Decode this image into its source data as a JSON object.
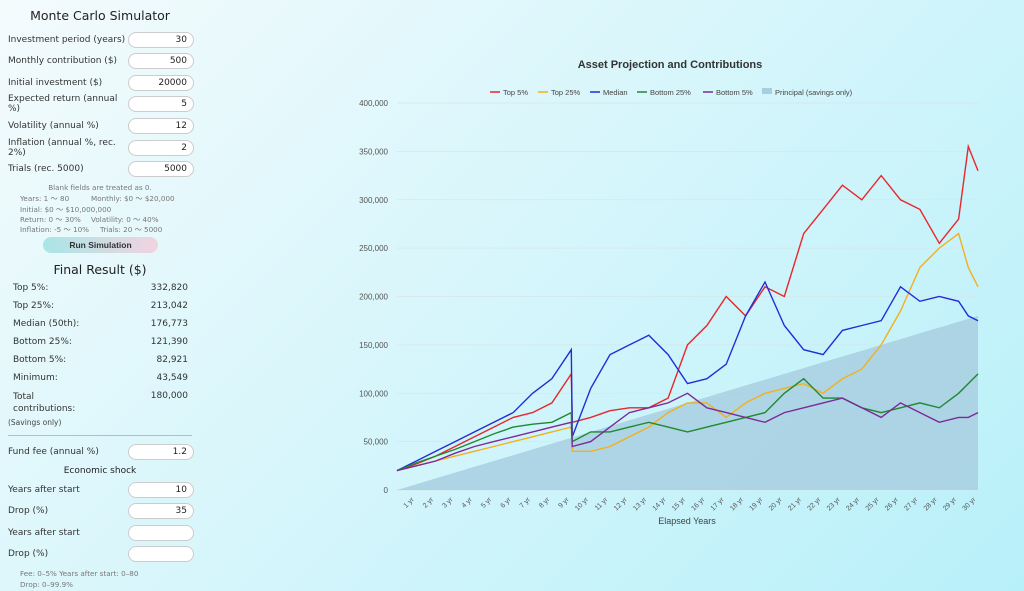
{
  "app_title": "Monte Carlo Simulator",
  "inputs": [
    {
      "label": "Investment period (years)",
      "value": "30"
    },
    {
      "label": "Monthly contribution ($)",
      "value": "500"
    },
    {
      "label": "Initial investment ($)",
      "value": "20000"
    },
    {
      "label": "Expected return (annual %)",
      "value": "5"
    },
    {
      "label": "Volatility (annual %)",
      "value": "12"
    },
    {
      "label": "Inflation (annual %, rec. 2%)",
      "value": "2"
    },
    {
      "label": "Trials (rec. 5000)",
      "value": "5000"
    }
  ],
  "hints": {
    "blank": "Blank fields are treated as 0.",
    "years": "Years: 1 〜 80",
    "monthly": "Monthly: $0 〜 $20,000",
    "initial": "Initial: $0 〜 $10,000,000",
    "return": "Return: 0 〜 30%",
    "volatility": "Volatility: 0 〜 40%",
    "inflation": "Inflation: -5 〜 10%",
    "trials": "Trials: 20 〜 5000"
  },
  "run_button": "Run Simulation",
  "results_title": "Final Result ($)",
  "results": [
    {
      "label": "Top 5%:",
      "value": "332,820"
    },
    {
      "label": "Top 25%:",
      "value": "213,042"
    },
    {
      "label": "Median (50th):",
      "value": "176,773"
    },
    {
      "label": "Bottom 25%:",
      "value": "121,390"
    },
    {
      "label": "Bottom 5%:",
      "value": "82,921"
    },
    {
      "label": "Minimum:",
      "value": "43,549"
    }
  ],
  "total_contrib": {
    "label1": "Total",
    "label2": "contributions:",
    "value": "180,000",
    "note": "(Savings only)"
  },
  "fee": {
    "label": "Fund fee (annual %)",
    "value": "1.2"
  },
  "shock": {
    "title": "Economic shock",
    "rows": [
      {
        "label": "Years after start",
        "value": "10"
      },
      {
        "label": "Drop (%)",
        "value": "35"
      },
      {
        "label": "Years after start",
        "value": ""
      },
      {
        "label": "Drop (%)",
        "value": ""
      }
    ]
  },
  "shock_hints": {
    "line1": "Fee: 0–5%   Years after start: 0–80",
    "line2": "Drop: 0–99.9%"
  },
  "chart_data": {
    "type": "line",
    "title": "Asset Projection and Contributions",
    "xlabel": "Elapsed Years",
    "ylabel": "",
    "ylim": [
      0,
      400000
    ],
    "yticks": [
      0,
      50000,
      100000,
      150000,
      200000,
      250000,
      300000,
      350000,
      400000
    ],
    "ytick_labels": [
      "0",
      "50,000",
      "100,000",
      "150,000",
      "200,000",
      "250,000",
      "300,000",
      "350,000",
      "400,000"
    ],
    "xlim": [
      0,
      30
    ],
    "xtick_labels": [
      "1 yr",
      "2 yr",
      "3 yr",
      "4 yr",
      "5 yr",
      "6 yr",
      "7 yr",
      "8 yr",
      "9 yr",
      "10 yr",
      "11 yr",
      "12 yr",
      "13 yr",
      "14 yr",
      "15 yr",
      "16 yr",
      "17 yr",
      "18 yr",
      "19 yr",
      "20 yr",
      "21 yr",
      "22 yr",
      "23 yr",
      "24 yr",
      "25 yr",
      "26 yr",
      "27 yr",
      "28 yr",
      "29 yr",
      "30 yr"
    ],
    "legend_position": "top",
    "grid": true,
    "x": [
      0,
      1,
      2,
      3,
      4,
      5,
      6,
      7,
      8,
      9,
      9.05,
      10,
      11,
      12,
      13,
      14,
      15,
      16,
      17,
      18,
      19,
      20,
      21,
      22,
      23,
      24,
      25,
      26,
      27,
      28,
      29,
      29.5,
      30
    ],
    "series": [
      {
        "name": "Top 5%",
        "color": "#e8262b",
        "values": [
          20000,
          27000,
          35000,
          45000,
          55000,
          65000,
          75000,
          80000,
          90000,
          120000,
          70000,
          75000,
          82000,
          85000,
          85000,
          95000,
          150000,
          170000,
          200000,
          180000,
          210000,
          200000,
          265000,
          290000,
          315000,
          300000,
          325000,
          300000,
          290000,
          255000,
          280000,
          355000,
          330000
        ]
      },
      {
        "name": "Top 25%",
        "color": "#f2b01e",
        "values": [
          20000,
          25000,
          30000,
          35000,
          40000,
          45000,
          50000,
          55000,
          60000,
          65000,
          40000,
          40000,
          45000,
          55000,
          65000,
          80000,
          90000,
          90000,
          75000,
          90000,
          100000,
          105000,
          110000,
          100000,
          115000,
          125000,
          150000,
          185000,
          230000,
          250000,
          265000,
          230000,
          210000
        ]
      },
      {
        "name": "Median",
        "color": "#1f2fd8",
        "values": [
          20000,
          30000,
          40000,
          50000,
          60000,
          70000,
          80000,
          100000,
          115000,
          145000,
          55000,
          105000,
          140000,
          150000,
          160000,
          140000,
          110000,
          115000,
          130000,
          180000,
          215000,
          170000,
          145000,
          140000,
          165000,
          170000,
          175000,
          210000,
          195000,
          200000,
          195000,
          180000,
          175000
        ]
      },
      {
        "name": "Bottom 25%",
        "color": "#1e8a2e",
        "values": [
          20000,
          28000,
          35000,
          42000,
          50000,
          58000,
          65000,
          68000,
          70000,
          80000,
          50000,
          60000,
          60000,
          65000,
          70000,
          65000,
          60000,
          65000,
          70000,
          75000,
          80000,
          100000,
          115000,
          95000,
          95000,
          85000,
          80000,
          85000,
          90000,
          85000,
          100000,
          110000,
          120000
        ]
      },
      {
        "name": "Bottom 5%",
        "color": "#7b2a9a",
        "values": [
          20000,
          25000,
          30000,
          38000,
          45000,
          50000,
          55000,
          60000,
          65000,
          70000,
          45000,
          50000,
          65000,
          80000,
          85000,
          90000,
          100000,
          85000,
          80000,
          75000,
          70000,
          80000,
          85000,
          90000,
          95000,
          85000,
          75000,
          90000,
          80000,
          70000,
          75000,
          75000,
          80000
        ]
      },
      {
        "name": "Principal (savings only)",
        "color": "#a8cfe0",
        "area": true,
        "values": [
          0,
          6000,
          12000,
          18000,
          24000,
          30000,
          36000,
          42000,
          48000,
          54000,
          54300,
          60000,
          66000,
          72000,
          78000,
          84000,
          90000,
          96000,
          102000,
          108000,
          114000,
          120000,
          126000,
          132000,
          138000,
          144000,
          150000,
          156000,
          162000,
          168000,
          174000,
          177000,
          180000
        ]
      }
    ]
  }
}
